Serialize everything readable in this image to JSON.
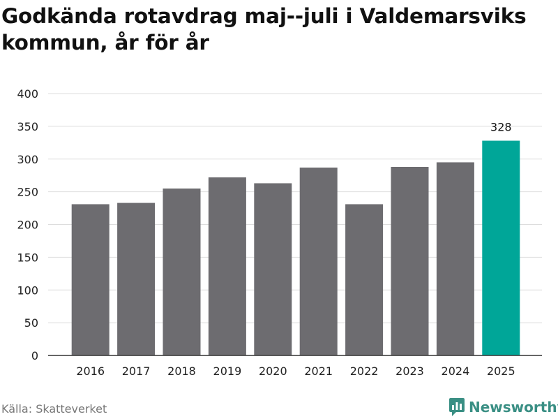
{
  "title": "Godkända rotavdrag maj--juli i Valdemarsviks kommun, år för år",
  "source": "Källa: Skatteverket",
  "brand": {
    "name": "Newsworthy",
    "icon": "newsworthy-logo-icon",
    "color": "#3a8f84"
  },
  "colors": {
    "bar": "#6d6c70",
    "highlight": "#00a698",
    "grid": "#dddddd",
    "axis": "#333333"
  },
  "chart_data": {
    "type": "bar",
    "categories": [
      "2016",
      "2017",
      "2018",
      "2019",
      "2020",
      "2021",
      "2022",
      "2023",
      "2024",
      "2025"
    ],
    "values": [
      231,
      233,
      255,
      272,
      263,
      287,
      231,
      288,
      295,
      328
    ],
    "highlight_index": 9,
    "data_labels": [
      {
        "index": 9,
        "text": "328"
      }
    ],
    "ylim": [
      0,
      400
    ],
    "yticks": [
      0,
      50,
      100,
      150,
      200,
      250,
      300,
      350,
      400
    ],
    "grid": true,
    "xlabel": "",
    "ylabel": ""
  }
}
